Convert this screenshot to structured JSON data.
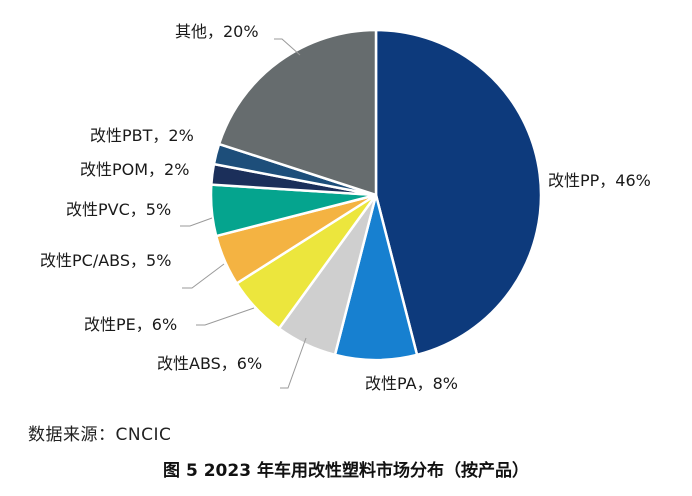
{
  "chart_data": {
    "type": "pie",
    "categories": [
      "改性PP",
      "改性PA",
      "改性ABS",
      "改性PE",
      "改性PC/ABS",
      "改性PVC",
      "改性POM",
      "改性PBT",
      "其他"
    ],
    "values": [
      46,
      8,
      6,
      6,
      5,
      5,
      2,
      2,
      20
    ],
    "labels": [
      "改性PP，46%",
      "改性PA，8%",
      "改性ABS，6%",
      "改性PE，6%",
      "改性PC/ABS，5%",
      "改性PVC，5%",
      "改性POM，2%",
      "改性PBT，2%",
      "其他，20%"
    ],
    "colors": [
      "#0d3a7c",
      "#1780d0",
      "#cfcfcf",
      "#ece63d",
      "#f4b342",
      "#05a48e",
      "#1b2f5a",
      "#1d4e7a",
      "#666c6e"
    ],
    "start_angle_deg": 0,
    "direction": "clockwise",
    "legend": "none"
  },
  "source": "数据来源：CNCIC",
  "caption": "图 5  2023 年车用改性塑料市场分布（按产品）"
}
